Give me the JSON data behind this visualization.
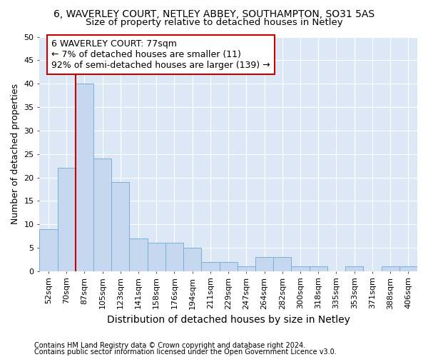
{
  "title1": "6, WAVERLEY COURT, NETLEY ABBEY, SOUTHAMPTON, SO31 5AS",
  "title2": "Size of property relative to detached houses in Netley",
  "xlabel": "Distribution of detached houses by size in Netley",
  "ylabel": "Number of detached properties",
  "categories": [
    "52sqm",
    "70sqm",
    "87sqm",
    "105sqm",
    "123sqm",
    "141sqm",
    "158sqm",
    "176sqm",
    "194sqm",
    "211sqm",
    "229sqm",
    "247sqm",
    "264sqm",
    "282sqm",
    "300sqm",
    "318sqm",
    "335sqm",
    "353sqm",
    "371sqm",
    "388sqm",
    "406sqm"
  ],
  "values": [
    9,
    22,
    40,
    24,
    19,
    7,
    6,
    6,
    5,
    2,
    2,
    1,
    3,
    3,
    1,
    1,
    0,
    1,
    0,
    1,
    1
  ],
  "bar_color": "#c5d8f0",
  "bar_edge_color": "#7aafd4",
  "background_color": "#dce8f5",
  "fig_background_color": "#ffffff",
  "grid_color": "#ffffff",
  "property_label": "6 WAVERLEY COURT: 77sqm",
  "annotation_line1": "← 7% of detached houses are smaller (11)",
  "annotation_line2": "92% of semi-detached houses are larger (139) →",
  "annotation_box_facecolor": "#ffffff",
  "annotation_box_edgecolor": "#cc0000",
  "red_line_color": "#cc0000",
  "red_line_x": 1.5,
  "ylim": [
    0,
    50
  ],
  "yticks": [
    0,
    5,
    10,
    15,
    20,
    25,
    30,
    35,
    40,
    45,
    50
  ],
  "title1_fontsize": 10,
  "title2_fontsize": 9.5,
  "xlabel_fontsize": 10,
  "ylabel_fontsize": 9,
  "tick_fontsize": 8,
  "annotation_fontsize": 9,
  "footnote1": "Contains HM Land Registry data © Crown copyright and database right 2024.",
  "footnote2": "Contains public sector information licensed under the Open Government Licence v3.0.",
  "footnote_fontsize": 7
}
